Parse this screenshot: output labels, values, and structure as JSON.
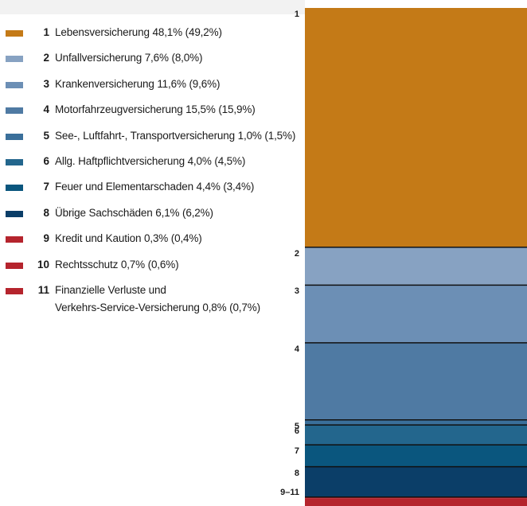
{
  "chart_data": {
    "type": "bar",
    "stacked": true,
    "orientation": "vertical",
    "categories": [
      "1",
      "2",
      "3",
      "4",
      "5",
      "6",
      "7",
      "8",
      "9",
      "10",
      "11"
    ],
    "labels": [
      "Lebensversicherung",
      "Unfallversicherung",
      "Krankenversicherung",
      "Motorfahrzeugversicherung",
      "See-, Luftfahrt-, Transportversicherung",
      "Allg. Haftpflichtversicherung",
      "Feuer und Elementarschaden",
      "Übrige Sachschäden",
      "Kredit und Kaution",
      "Rechtsschutz",
      "Finanzielle Verluste und Verkehrs-Service-Versicherung"
    ],
    "label_lines": [
      [
        "Lebensversicherung 48,1% (49,2%)"
      ],
      [
        "Unfallversicherung 7,6% (8,0%)"
      ],
      [
        "Krankenversicherung 11,6% (9,6%)"
      ],
      [
        "Motorfahrzeugversicherung 15,5% (15,9%)"
      ],
      [
        "See-, Luftfahrt-, Transportversicherung 1,0% (1,5%)"
      ],
      [
        "Allg. Haftpflichtversicherung 4,0% (4,5%)"
      ],
      [
        "Feuer und Elementarschaden 4,4% (3,4%)"
      ],
      [
        "Übrige Sachschäden 6,1% (6,2%)"
      ],
      [
        "Kredit und Kaution 0,3% (0,4%)"
      ],
      [
        "Rechtsschutz 0,7% (0,6%)"
      ],
      [
        "Finanzielle Verluste und",
        "Verkehrs-Service-Versicherung 0,8% (0,7%)"
      ]
    ],
    "values": [
      48.1,
      7.6,
      11.6,
      15.5,
      1.0,
      4.0,
      4.4,
      6.1,
      0.3,
      0.7,
      0.8
    ],
    "previous_values": [
      49.2,
      8.0,
      9.6,
      15.9,
      1.5,
      4.5,
      3.4,
      6.2,
      0.4,
      0.6,
      0.7
    ],
    "unit": "%",
    "colors": [
      "#c47a17",
      "#87a2c2",
      "#6c8fb5",
      "#4f7aa3",
      "#3a6f9a",
      "#23668d",
      "#0a567e",
      "#0b3e68",
      "#b5242d",
      "#b5242d",
      "#b5242d"
    ],
    "segment_labels": [
      "1",
      "2",
      "3",
      "4",
      "5",
      "6",
      "7",
      "8",
      "9–11"
    ],
    "legend": "left",
    "grid": false
  }
}
